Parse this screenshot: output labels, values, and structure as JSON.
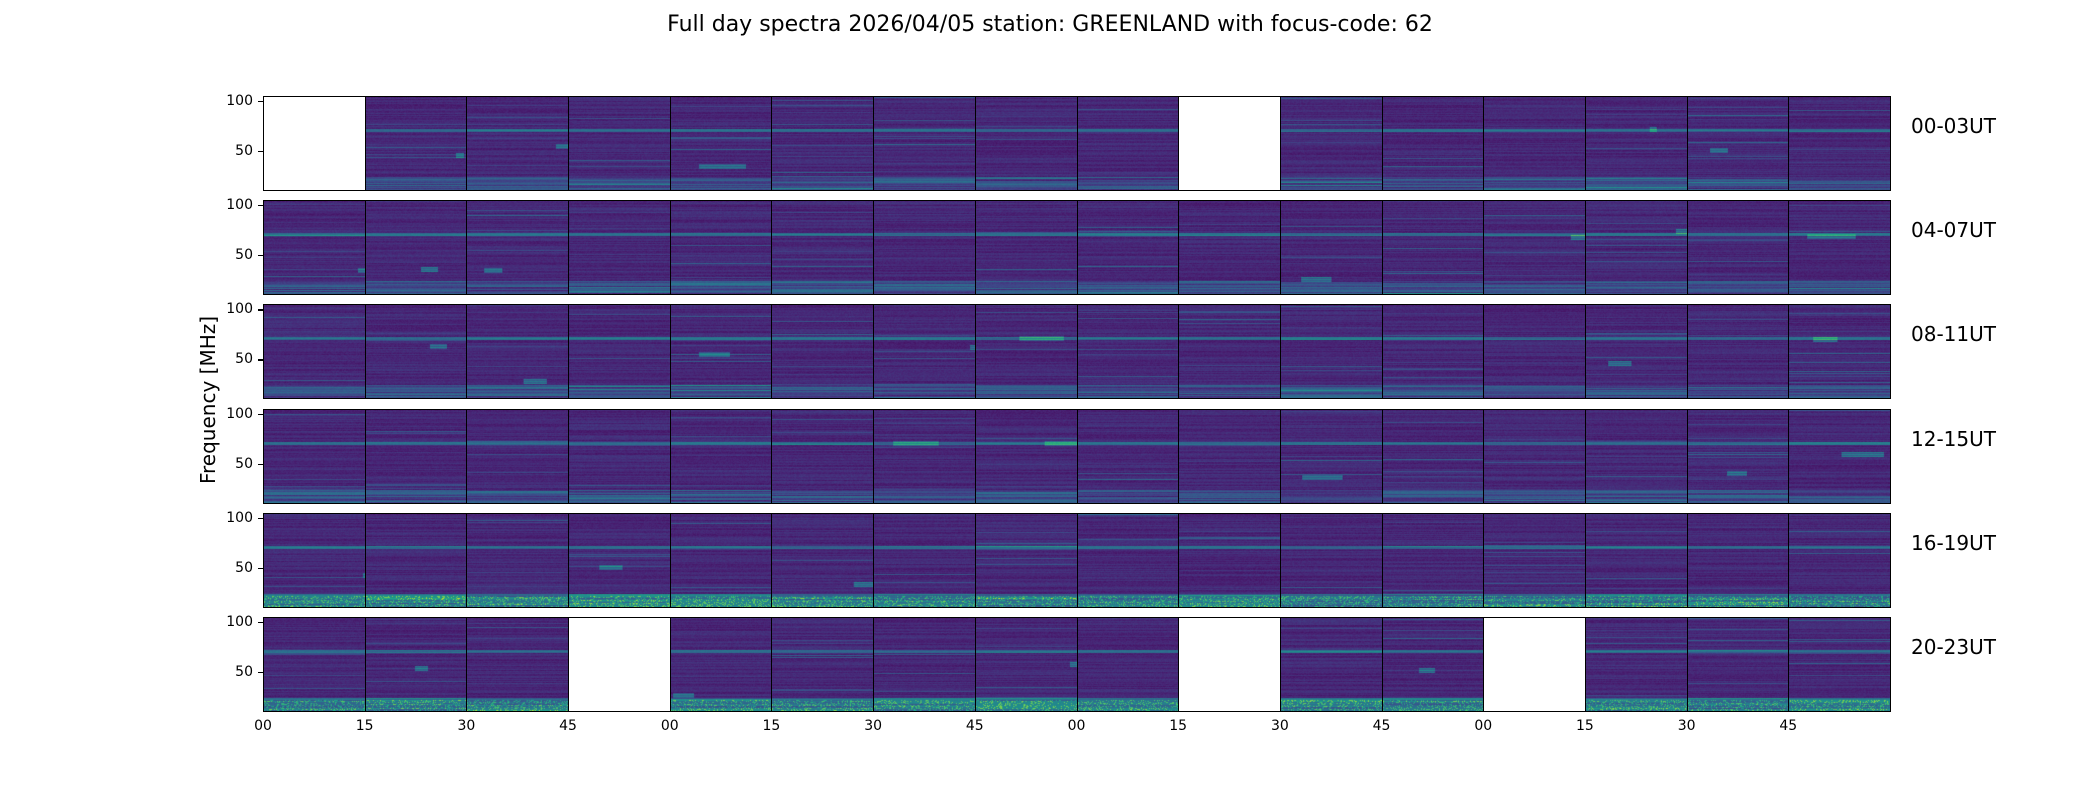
{
  "chart_data": {
    "type": "heatmap",
    "title": "Full day spectra 2026/04/05 station: GREENLAND with focus-code: 62",
    "ylabel": "Frequency [MHz]",
    "xlabel": "",
    "ylim": [
      10,
      105
    ],
    "yticks": [
      "100",
      "50"
    ],
    "ytick_values": [
      100,
      50
    ],
    "xticks": [
      "00",
      "15",
      "30",
      "45",
      "00",
      "15",
      "30",
      "45",
      "00",
      "15",
      "30",
      "45",
      "00",
      "15",
      "30",
      "45"
    ],
    "rows": [
      {
        "label": "00-03UT",
        "missing": [
          0,
          9
        ]
      },
      {
        "label": "04-07UT",
        "missing": []
      },
      {
        "label": "08-11UT",
        "missing": []
      },
      {
        "label": "12-15UT",
        "missing": []
      },
      {
        "label": "16-19UT",
        "missing": []
      },
      {
        "label": "20-23UT",
        "missing": [
          3,
          9,
          12
        ]
      }
    ],
    "columns_per_row": 16,
    "minutes_per_panel": 15,
    "colormap": "viridis"
  }
}
